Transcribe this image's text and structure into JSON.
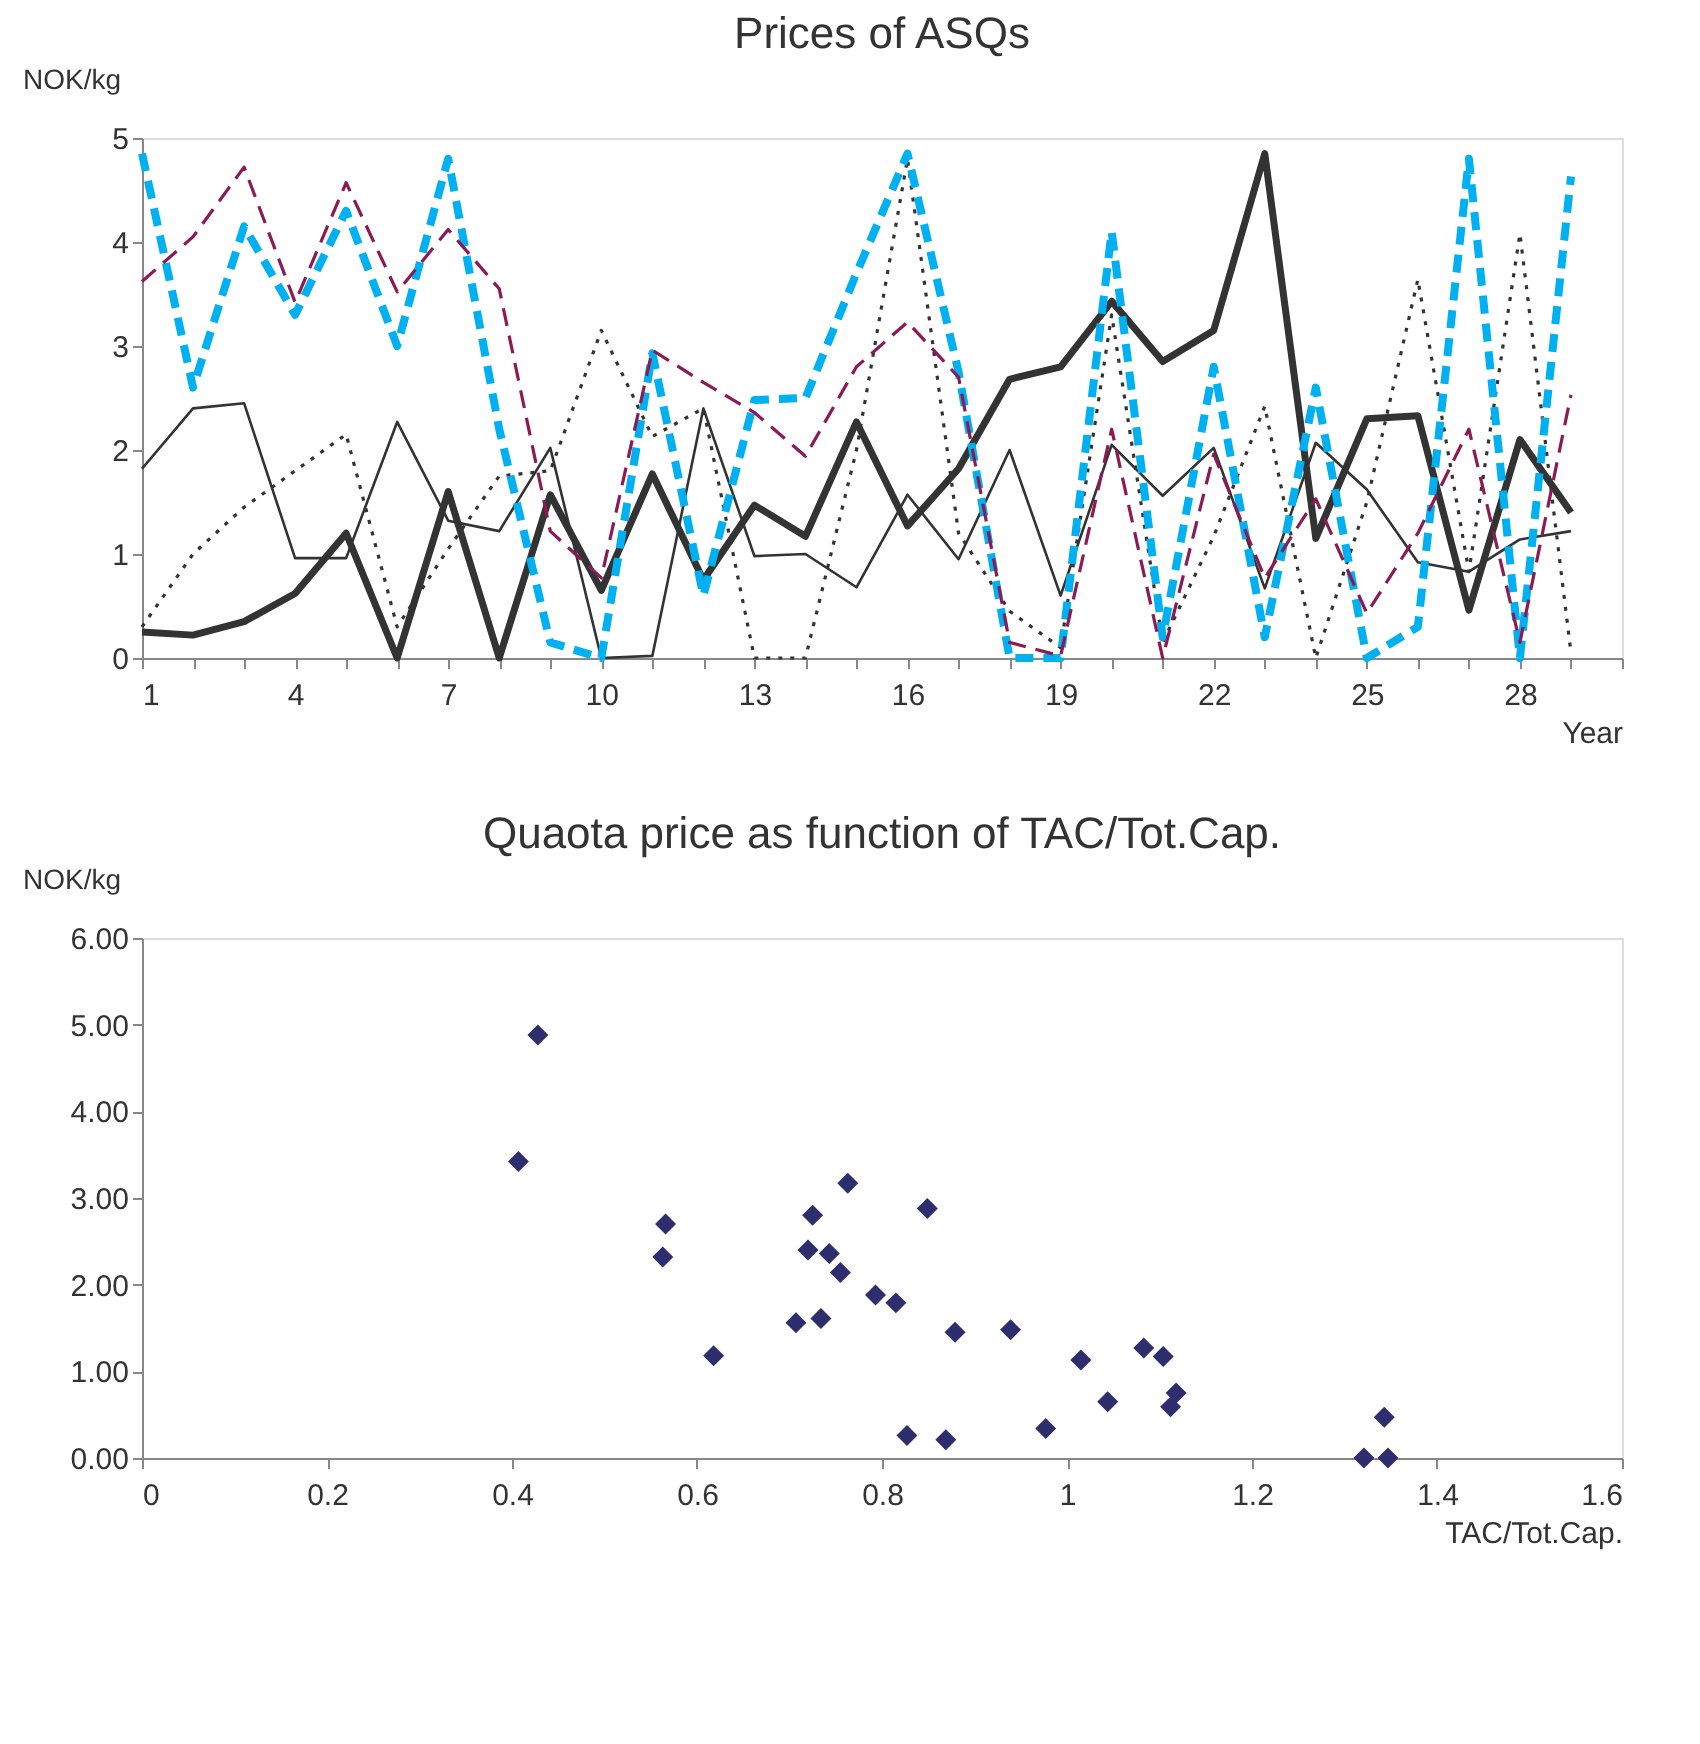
{
  "chart_data": [
    {
      "type": "line",
      "title": "Prices of ASQs",
      "ylabel": "NOK/kg",
      "xlabel": "Year",
      "x": [
        1,
        2,
        3,
        4,
        5,
        6,
        7,
        8,
        9,
        10,
        11,
        12,
        13,
        14,
        15,
        16,
        17,
        18,
        19,
        20,
        21,
        22,
        23,
        24,
        25,
        26,
        27,
        28,
        29
      ],
      "xlim": [
        1,
        30
      ],
      "ylim": [
        0,
        5
      ],
      "yticks": [
        0,
        1,
        2,
        3,
        4,
        5
      ],
      "xticks": [
        1,
        {
          "value": 2,
          "label": null
        },
        {
          "value": 3,
          "label": null
        },
        4,
        {
          "value": 5,
          "label": null
        },
        {
          "value": 6,
          "label": null
        },
        7,
        {
          "value": 8,
          "label": null
        },
        {
          "value": 9,
          "label": null
        },
        10,
        {
          "value": 11,
          "label": null
        },
        {
          "value": 12,
          "label": null
        },
        13,
        {
          "value": 14,
          "label": null
        },
        {
          "value": 15,
          "label": null
        },
        16,
        {
          "value": 17,
          "label": null
        },
        {
          "value": 18,
          "label": null
        },
        19,
        {
          "value": 20,
          "label": null
        },
        {
          "value": 21,
          "label": null
        },
        22,
        {
          "value": 23,
          "label": null
        },
        {
          "value": 24,
          "label": null
        },
        25,
        {
          "value": 26,
          "label": null
        },
        {
          "value": 27,
          "label": null
        },
        28,
        {
          "value": 29,
          "label": null
        },
        {
          "value": 30,
          "label": null
        }
      ],
      "grid": false,
      "marker": "none",
      "series": [
        {
          "color": "#333333",
          "line_style": "solid",
          "values": [
            0.25,
            0.22,
            0.35,
            0.62,
            1.2,
            0,
            1.6,
            0,
            1.57,
            0.65,
            1.77,
            0.75,
            1.47,
            1.17,
            2.27,
            1.27,
            1.82,
            2.68,
            2.8,
            3.43,
            2.85,
            3.15,
            4.85,
            1.15,
            2.3,
            2.33,
            0.46,
            2.1,
            1.4
          ]
        },
        {
          "color": "#333333",
          "line_style": "solid",
          "values": [
            1.82,
            2.4,
            2.45,
            0.96,
            0.96,
            2.27,
            1.32,
            1.22,
            2.02,
            0,
            0.02,
            2.4,
            0.98,
            1.0,
            0.68,
            1.57,
            0.95,
            2.0,
            0.6,
            2.05,
            1.56,
            2.02,
            0.67,
            2.07,
            1.62,
            0.92,
            0.83,
            1.14,
            1.22
          ]
        },
        {
          "color": "#333333",
          "line_style": "dotted",
          "values": [
            0.3,
            1.0,
            1.45,
            1.8,
            2.15,
            0.3,
            1.05,
            1.75,
            1.8,
            3.15,
            2.13,
            2.4,
            0,
            0,
            2.0,
            4.8,
            1.2,
            0.45,
            0.1,
            3.3,
            0.15,
            1.17,
            2.42,
            0,
            1.5,
            3.64,
            0.83,
            4.08,
            0.05
          ]
        },
        {
          "color": "#00b0f0",
          "line_style": "dashed",
          "values": [
            4.85,
            2.6,
            4.15,
            3.3,
            4.3,
            3.0,
            4.8,
            2.2,
            0.15,
            0,
            2.93,
            0.6,
            2.48,
            2.5,
            3.7,
            4.85,
            2.75,
            0,
            0,
            4.1,
            0.2,
            2.8,
            0.2,
            2.6,
            0,
            0.3,
            4.8,
            0,
            4.63
          ]
        },
        {
          "color": "#8b1a55",
          "line_style": "dashed",
          "values": [
            3.62,
            4.05,
            4.72,
            3.42,
            4.57,
            3.52,
            4.12,
            3.55,
            1.22,
            0.77,
            2.96,
            2.65,
            2.36,
            1.94,
            2.8,
            3.23,
            2.7,
            0.15,
            0.02,
            2.2,
            0,
            1.96,
            0.77,
            1.53,
            0.43,
            1.2,
            2.2,
            0.15,
            2.53
          ]
        }
      ]
    },
    {
      "type": "scatter",
      "title": "Quaota price as function of TAC/Tot.Cap.",
      "ylabel": "NOK/kg",
      "xlabel": "TAC/Tot.Cap.",
      "marker": "diamond",
      "grid": false,
      "xlim": [
        0,
        1.6
      ],
      "xticks": [
        0,
        0.2,
        0.4,
        0.6,
        0.8,
        1,
        1.2,
        1.4,
        1.6
      ],
      "ylim": [
        0,
        6
      ],
      "yticks": [
        {
          "value": 0,
          "label": "0.00"
        },
        {
          "value": 1,
          "label": "1.00"
        },
        {
          "value": 2,
          "label": "2.00"
        },
        {
          "value": 3,
          "label": "3.00"
        },
        {
          "value": 4,
          "label": "4.00"
        },
        {
          "value": 5,
          "label": "5.00"
        },
        {
          "value": 6,
          "label": "6.00"
        }
      ],
      "series": [
        {
          "color": "#2e2e6e",
          "x": [
            0.407,
            0.428,
            0.566,
            0.563,
            0.618,
            0.707,
            0.734,
            0.72,
            0.725,
            0.743,
            0.755,
            0.763,
            0.793,
            0.815,
            0.827,
            0.849,
            0.869,
            0.879,
            0.939,
            0.977,
            1.015,
            1.044,
            1.083,
            1.104,
            1.112,
            1.118,
            1.321,
            1.343,
            1.347
          ],
          "values": [
            3.42,
            4.88,
            2.7,
            2.32,
            1.18,
            1.56,
            1.61,
            2.4,
            2.8,
            2.36,
            2.14,
            3.17,
            1.88,
            1.79,
            0.26,
            2.88,
            0.21,
            1.45,
            1.48,
            0.34,
            1.13,
            0.65,
            1.27,
            1.17,
            0.59,
            0.75,
            0,
            0.47,
            0
          ]
        }
      ]
    }
  ]
}
